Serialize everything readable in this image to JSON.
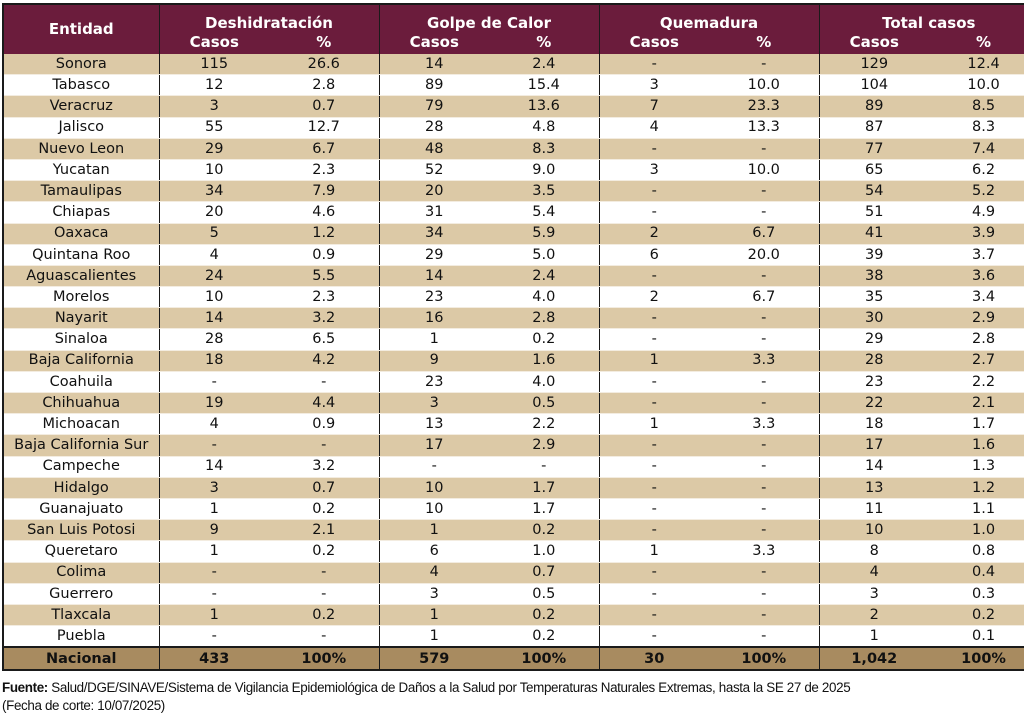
{
  "header": {
    "entity_label": "Entidad",
    "groups": [
      "Deshidratación",
      "Golpe de Calor",
      "Quemadura",
      "Total casos"
    ],
    "sub_cases": "Casos",
    "sub_pct": "%"
  },
  "rows": [
    [
      "Sonora",
      "115",
      "26.6",
      "14",
      "2.4",
      "-",
      "-",
      "129",
      "12.4"
    ],
    [
      "Tabasco",
      "12",
      "2.8",
      "89",
      "15.4",
      "3",
      "10.0",
      "104",
      "10.0"
    ],
    [
      "Veracruz",
      "3",
      "0.7",
      "79",
      "13.6",
      "7",
      "23.3",
      "89",
      "8.5"
    ],
    [
      "Jalisco",
      "55",
      "12.7",
      "28",
      "4.8",
      "4",
      "13.3",
      "87",
      "8.3"
    ],
    [
      "Nuevo Leon",
      "29",
      "6.7",
      "48",
      "8.3",
      "-",
      "-",
      "77",
      "7.4"
    ],
    [
      "Yucatan",
      "10",
      "2.3",
      "52",
      "9.0",
      "3",
      "10.0",
      "65",
      "6.2"
    ],
    [
      "Tamaulipas",
      "34",
      "7.9",
      "20",
      "3.5",
      "-",
      "-",
      "54",
      "5.2"
    ],
    [
      "Chiapas",
      "20",
      "4.6",
      "31",
      "5.4",
      "-",
      "-",
      "51",
      "4.9"
    ],
    [
      "Oaxaca",
      "5",
      "1.2",
      "34",
      "5.9",
      "2",
      "6.7",
      "41",
      "3.9"
    ],
    [
      "Quintana Roo",
      "4",
      "0.9",
      "29",
      "5.0",
      "6",
      "20.0",
      "39",
      "3.7"
    ],
    [
      "Aguascalientes",
      "24",
      "5.5",
      "14",
      "2.4",
      "-",
      "-",
      "38",
      "3.6"
    ],
    [
      "Morelos",
      "10",
      "2.3",
      "23",
      "4.0",
      "2",
      "6.7",
      "35",
      "3.4"
    ],
    [
      "Nayarit",
      "14",
      "3.2",
      "16",
      "2.8",
      "-",
      "-",
      "30",
      "2.9"
    ],
    [
      "Sinaloa",
      "28",
      "6.5",
      "1",
      "0.2",
      "-",
      "-",
      "29",
      "2.8"
    ],
    [
      "Baja California",
      "18",
      "4.2",
      "9",
      "1.6",
      "1",
      "3.3",
      "28",
      "2.7"
    ],
    [
      "Coahuila",
      "-",
      "-",
      "23",
      "4.0",
      "-",
      "-",
      "23",
      "2.2"
    ],
    [
      "Chihuahua",
      "19",
      "4.4",
      "3",
      "0.5",
      "-",
      "-",
      "22",
      "2.1"
    ],
    [
      "Michoacan",
      "4",
      "0.9",
      "13",
      "2.2",
      "1",
      "3.3",
      "18",
      "1.7"
    ],
    [
      "Baja California Sur",
      "-",
      "-",
      "17",
      "2.9",
      "-",
      "-",
      "17",
      "1.6"
    ],
    [
      "Campeche",
      "14",
      "3.2",
      "-",
      "-",
      "-",
      "-",
      "14",
      "1.3"
    ],
    [
      "Hidalgo",
      "3",
      "0.7",
      "10",
      "1.7",
      "-",
      "-",
      "13",
      "1.2"
    ],
    [
      "Guanajuato",
      "1",
      "0.2",
      "10",
      "1.7",
      "-",
      "-",
      "11",
      "1.1"
    ],
    [
      "San Luis Potosi",
      "9",
      "2.1",
      "1",
      "0.2",
      "-",
      "-",
      "10",
      "1.0"
    ],
    [
      "Queretaro",
      "1",
      "0.2",
      "6",
      "1.0",
      "1",
      "3.3",
      "8",
      "0.8"
    ],
    [
      "Colima",
      "-",
      "-",
      "4",
      "0.7",
      "-",
      "-",
      "4",
      "0.4"
    ],
    [
      "Guerrero",
      "-",
      "-",
      "3",
      "0.5",
      "-",
      "-",
      "3",
      "0.3"
    ],
    [
      "Tlaxcala",
      "1",
      "0.2",
      "1",
      "0.2",
      "-",
      "-",
      "2",
      "0.2"
    ],
    [
      "Puebla",
      "-",
      "-",
      "1",
      "0.2",
      "-",
      "-",
      "1",
      "0.1"
    ]
  ],
  "total": [
    "Nacional",
    "433",
    "100%",
    "579",
    "100%",
    "30",
    "100%",
    "1,042",
    "100%"
  ],
  "source": {
    "label": "Fuente:",
    "text": " Salud/DGE/SINAVE/Sistema de Vigilancia Epidemiológica de Daños a la Salud por Temperaturas Naturales Extremas, hasta la SE 27 de 2025",
    "cut_date": "(Fecha de corte: 10/07/2025)"
  },
  "colors": {
    "header_bg": "#6b1c3c",
    "row_band": "#dcc9a6",
    "total_bg": "#a88b60"
  }
}
